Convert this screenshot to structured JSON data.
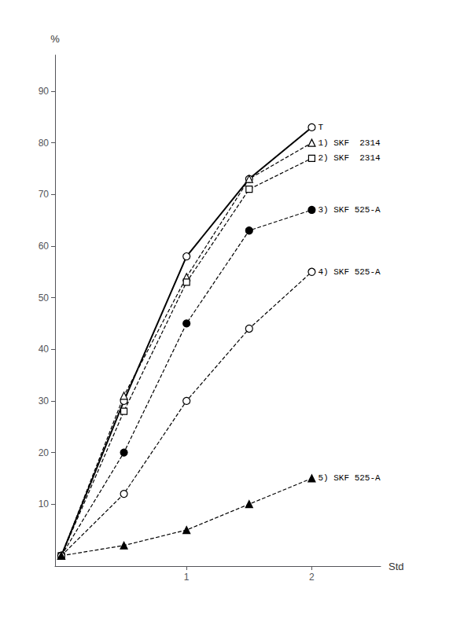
{
  "chart_data": {
    "type": "line",
    "x": [
      0,
      0.5,
      1.0,
      1.5,
      2.0
    ],
    "series": [
      {
        "name": "T",
        "values": [
          0,
          30,
          58,
          73,
          83
        ],
        "color": "#000000",
        "marker": "open-circle",
        "line_style": "solid"
      },
      {
        "name": "1) SKF  2314",
        "values": [
          0,
          31,
          54,
          73,
          80
        ],
        "color": "#000000",
        "marker": "open-triangle",
        "line_style": "dashed"
      },
      {
        "name": "2) SKF  2314",
        "values": [
          0,
          28,
          53,
          71,
          77
        ],
        "color": "#000000",
        "marker": "open-square",
        "line_style": "dashed"
      },
      {
        "name": "3) SKF 525-A",
        "values": [
          0,
          20,
          45,
          63,
          67
        ],
        "color": "#000000",
        "marker": "filled-circle",
        "line_style": "dashed"
      },
      {
        "name": "4) SKF 525-A",
        "values": [
          0,
          12,
          30,
          44,
          55
        ],
        "color": "#000000",
        "marker": "open-circle",
        "line_style": "dashed"
      },
      {
        "name": "5) SKF 525-A",
        "values": [
          0,
          2,
          5,
          10,
          15
        ],
        "color": "#000000",
        "marker": "filled-triangle",
        "line_style": "dashed"
      }
    ],
    "xlabel": "Std",
    "ylabel": "%",
    "xlim": [
      -0.05,
      2.55
    ],
    "ylim": [
      -2,
      97
    ],
    "xticks": [
      1,
      2
    ],
    "yticks": [
      10,
      20,
      30,
      40,
      50,
      60,
      70,
      80,
      90
    ],
    "grid": false,
    "legend": false
  }
}
